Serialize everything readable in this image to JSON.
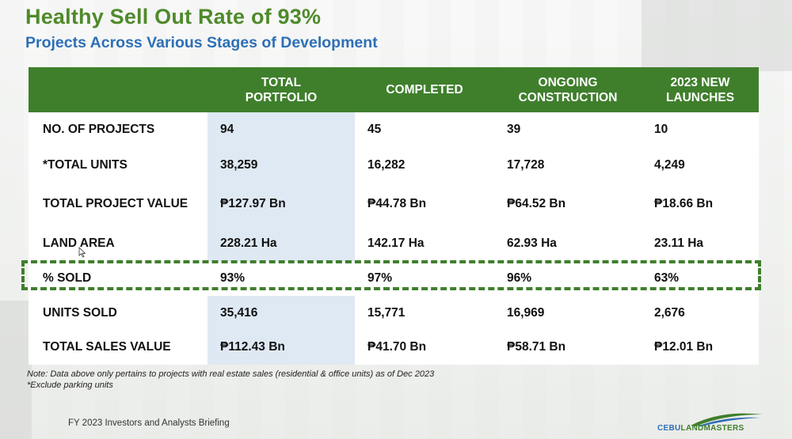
{
  "header": {
    "title": "Healthy Sell Out Rate of 93%",
    "subtitle": "Projects Across Various Stages of Development"
  },
  "table": {
    "columns": [
      "",
      "TOTAL\nPORTFOLIO",
      "COMPLETED",
      "ONGOING\nCONSTRUCTION",
      "2023 NEW\nLAUNCHES"
    ],
    "rows": [
      {
        "label": "NO. OF PROJECTS",
        "values": [
          "94",
          "45",
          "39",
          "10"
        ]
      },
      {
        "label": "*TOTAL UNITS",
        "values": [
          "38,259",
          "16,282",
          "17,728",
          "4,249"
        ]
      },
      {
        "label": "TOTAL PROJECT VALUE",
        "values": [
          "₱127.97 Bn",
          "₱44.78 Bn",
          "₱64.52 Bn",
          "₱18.66 Bn"
        ]
      },
      {
        "label": "LAND AREA",
        "values": [
          "228.21 Ha",
          "142.17 Ha",
          "62.93 Ha",
          "23.11 Ha"
        ]
      },
      {
        "label": "% SOLD",
        "values": [
          "93%",
          "97%",
          "96%",
          "63%"
        ]
      },
      {
        "label": "UNITS SOLD",
        "values": [
          "35,416",
          "15,771",
          "16,969",
          "2,676"
        ]
      },
      {
        "label": "TOTAL SALES VALUE",
        "values": [
          "₱112.43 Bn",
          "₱41.70 Bn",
          "₱58.71 Bn",
          "₱12.01 Bn"
        ]
      }
    ],
    "highlighted_row": "% SOLD",
    "highlighted_column": "TOTAL PORTFOLIO"
  },
  "notes": {
    "line1": "Note: Data above only pertains to projects with real estate sales (residential & office units) as of Dec 2023",
    "line2": "*Exclude parking units"
  },
  "footer": {
    "text": "FY 2023 Investors and Analysts Briefing",
    "logo_part1": "CEBU",
    "logo_part2": "LANDMASTERS"
  },
  "colors": {
    "title_green": "#4f8a2b",
    "subtitle_blue": "#2e6fb7",
    "header_green": "#3f7f2c",
    "column_highlight": "#dfe9f3"
  }
}
